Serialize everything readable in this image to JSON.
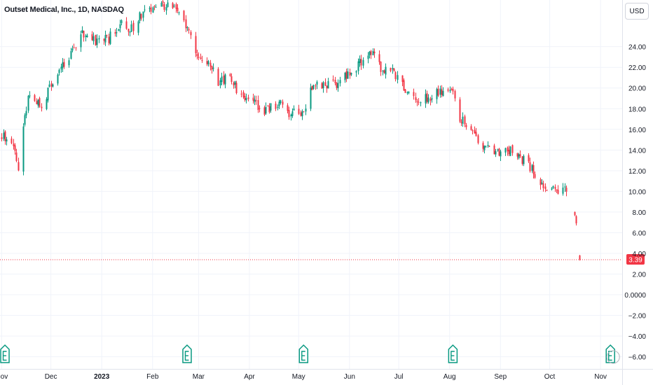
{
  "header": {
    "title": "Outset Medical, Inc., 1D, NASDAQ",
    "currency_button": "USD"
  },
  "colors": {
    "up": "#089981",
    "down": "#f23645",
    "grid": "#f0f3fa",
    "axis_text": "#131722",
    "earnings_badge": "#089981"
  },
  "icons": {
    "earnings": "earnings-e-icon"
  },
  "chart_data": {
    "type": "candlestick",
    "title": "Outset Medical, Inc., 1D, NASDAQ",
    "y_ticks": [
      "24.00",
      "22.00",
      "20.00",
      "18.00",
      "16.00",
      "14.00",
      "12.00",
      "10.00",
      "8.00",
      "6.00",
      "4.00",
      "2.00",
      "0.0000",
      "−2.00",
      "−4.00",
      "−6.00"
    ],
    "y_tick_values": [
      24,
      22,
      20,
      18,
      16,
      14,
      12,
      10,
      8,
      6,
      4,
      2,
      0,
      -2,
      -4,
      -6
    ],
    "ylim": [
      -6.5,
      27.5
    ],
    "x_labels": [
      {
        "label": "Nov",
        "date": "2022-11-01",
        "bold": false
      },
      {
        "label": "Dec",
        "date": "2022-12-01",
        "bold": false
      },
      {
        "label": "2023",
        "date": "2023-01-01",
        "bold": true
      },
      {
        "label": "Feb",
        "date": "2023-02-01",
        "bold": false
      },
      {
        "label": "Mar",
        "date": "2023-03-01",
        "bold": false
      },
      {
        "label": "Apr",
        "date": "2023-04-01",
        "bold": false
      },
      {
        "label": "May",
        "date": "2023-05-01",
        "bold": false
      },
      {
        "label": "Jun",
        "date": "2023-06-01",
        "bold": false
      },
      {
        "label": "Jul",
        "date": "2023-07-01",
        "bold": false
      },
      {
        "label": "Aug",
        "date": "2023-08-01",
        "bold": false
      },
      {
        "label": "Sep",
        "date": "2023-09-01",
        "bold": false
      },
      {
        "label": "Oct",
        "date": "2023-10-01",
        "bold": false
      },
      {
        "label": "Nov",
        "date": "2023-11-01",
        "bold": false
      }
    ],
    "last_price": 3.39,
    "last_price_label": "3.39",
    "earnings_dates": [
      "2022-11-03",
      "2023-02-22",
      "2023-05-04",
      "2023-08-03",
      "2023-11-07"
    ],
    "price_path": [
      [
        "2022-11-01",
        15.4
      ],
      [
        "2022-11-07",
        14.8
      ],
      [
        "2022-11-11",
        12.1
      ],
      [
        "2022-11-14",
        16.5
      ],
      [
        "2022-11-18",
        19.6
      ],
      [
        "2022-11-25",
        18.2
      ],
      [
        "2022-12-01",
        20.6
      ],
      [
        "2022-12-07",
        21.8
      ],
      [
        "2022-12-14",
        23.6
      ],
      [
        "2022-12-20",
        25.2
      ],
      [
        "2022-12-28",
        24.6
      ],
      [
        "2023-01-05",
        24.8
      ],
      [
        "2023-01-12",
        26.2
      ],
      [
        "2023-01-18",
        25.4
      ],
      [
        "2023-01-24",
        27.0
      ],
      [
        "2023-02-03",
        27.6
      ],
      [
        "2023-02-09",
        27.9
      ],
      [
        "2023-02-17",
        27.2
      ],
      [
        "2023-02-22",
        25.6
      ],
      [
        "2023-02-28",
        23.4
      ],
      [
        "2023-03-07",
        22.6
      ],
      [
        "2023-03-13",
        20.4
      ],
      [
        "2023-03-20",
        21.3
      ],
      [
        "2023-03-27",
        19.0
      ],
      [
        "2023-04-03",
        18.5
      ],
      [
        "2023-04-11",
        17.7
      ],
      [
        "2023-04-19",
        18.6
      ],
      [
        "2023-04-26",
        17.5
      ],
      [
        "2023-05-03",
        17.6
      ],
      [
        "2023-05-10",
        20.5
      ],
      [
        "2023-05-17",
        20.2
      ],
      [
        "2023-05-24",
        20.4
      ],
      [
        "2023-06-01",
        21.4
      ],
      [
        "2023-06-08",
        22.6
      ],
      [
        "2023-06-13",
        23.6
      ],
      [
        "2023-06-20",
        22.0
      ],
      [
        "2023-06-27",
        21.6
      ],
      [
        "2023-07-06",
        19.6
      ],
      [
        "2023-07-12",
        19.1
      ],
      [
        "2023-07-20",
        19.0
      ],
      [
        "2023-07-31",
        20.2
      ],
      [
        "2023-08-03",
        19.4
      ],
      [
        "2023-08-07",
        17.2
      ],
      [
        "2023-08-14",
        16.0
      ],
      [
        "2023-08-21",
        14.2
      ],
      [
        "2023-08-28",
        13.8
      ],
      [
        "2023-09-05",
        14.1
      ],
      [
        "2023-09-12",
        13.5
      ],
      [
        "2023-09-19",
        12.3
      ],
      [
        "2023-09-26",
        10.8
      ],
      [
        "2023-10-03",
        10.4
      ],
      [
        "2023-10-10",
        10.0
      ],
      [
        "2023-10-12",
        9.6
      ]
    ],
    "gap_candles": [
      {
        "date": "2023-10-16",
        "open": 8.0,
        "high": 8.05,
        "low": 7.6,
        "close": 7.7
      },
      {
        "date": "2023-10-17",
        "open": 7.6,
        "high": 7.7,
        "low": 6.7,
        "close": 6.9
      },
      {
        "date": "2023-10-19",
        "open": 3.8,
        "high": 3.85,
        "low": 3.3,
        "close": 3.39
      }
    ]
  }
}
